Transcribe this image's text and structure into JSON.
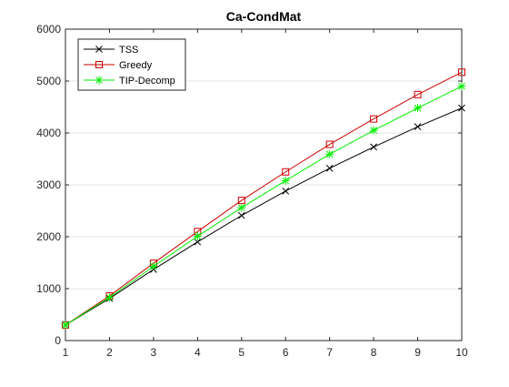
{
  "chart_data": {
    "type": "line",
    "title": "Ca-CondMat",
    "xlabel": "",
    "ylabel": "",
    "x": [
      1,
      2,
      3,
      4,
      5,
      6,
      7,
      8,
      9,
      10
    ],
    "xlim": [
      1,
      10
    ],
    "ylim": [
      0,
      6000
    ],
    "xticks": [
      1,
      2,
      3,
      4,
      5,
      6,
      7,
      8,
      9,
      10
    ],
    "yticks": [
      0,
      1000,
      2000,
      3000,
      4000,
      5000,
      6000
    ],
    "grid": "horizontal",
    "legend_position": "top-left",
    "series": [
      {
        "name": "TSS",
        "color": "#000000",
        "marker": "x",
        "values": [
          300,
          810,
          1370,
          1900,
          2410,
          2880,
          3320,
          3730,
          4120,
          4480
        ]
      },
      {
        "name": "Greedy",
        "color": "#cc0000",
        "marker": "square",
        "values": [
          300,
          860,
          1490,
          2100,
          2700,
          3250,
          3780,
          4270,
          4740,
          5170
        ]
      },
      {
        "name": "TIP-Decomp",
        "color": "#00ee00",
        "marker": "star",
        "values": [
          300,
          830,
          1430,
          2010,
          2560,
          3080,
          3590,
          4050,
          4480,
          4900
        ]
      }
    ]
  }
}
